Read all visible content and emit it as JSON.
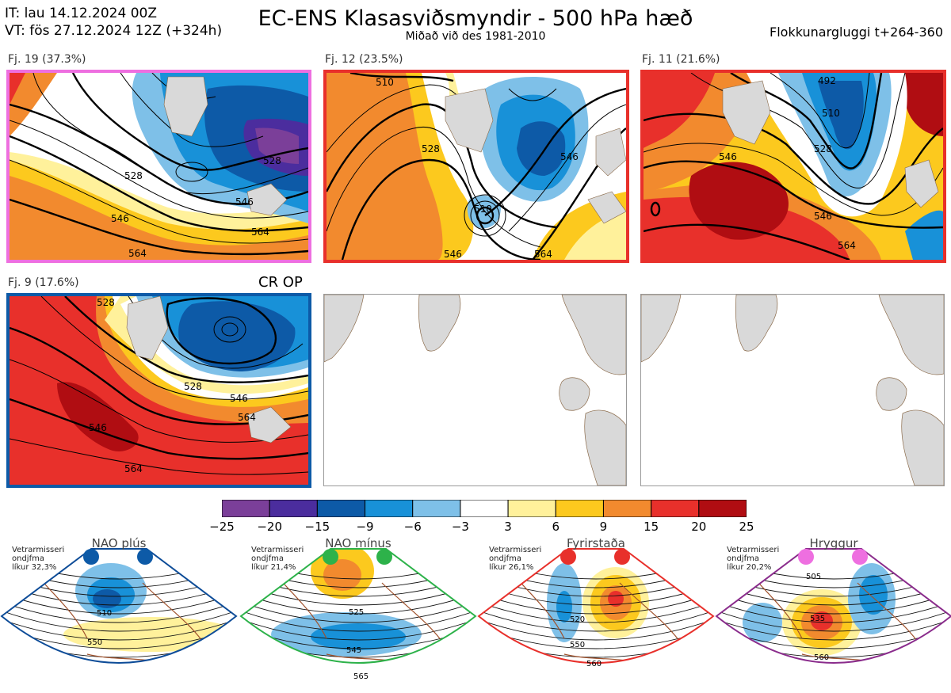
{
  "header": {
    "it_line": "IT: lau 14.12.2024 00Z",
    "vt_line": "VT: fös 27.12.2024 12Z  (+324h)",
    "title": "EC-ENS Klasasviðsmyndir - 500 hPa hæð",
    "subtitle": "Miðað við des 1981-2010",
    "window": "Flokkunargluggi t+264-360"
  },
  "op_label": "CR OP",
  "colors": {
    "scale": [
      "#7b3f99",
      "#4b2d9e",
      "#0d5aa7",
      "#1891d8",
      "#7ec0e8",
      "#ffffff",
      "#fff19b",
      "#fcc91e",
      "#f28a2e",
      "#e8302b",
      "#b00d12"
    ],
    "land": "#d9d9d9",
    "coast": "#8a6a4a"
  },
  "chart_data": [
    {
      "type": "heatmap",
      "panel": "Fj. 19 (37.3%)",
      "label": "Fj. 19 (37.3%)",
      "frame_color": "#ee6fe0",
      "contour_labels": [
        "528",
        "546",
        "564",
        "528",
        "546",
        "564"
      ]
    },
    {
      "type": "heatmap",
      "panel": "Fj. 12 (23.5%)",
      "label": "Fj. 12 (23.5%)",
      "frame_color": "#e8302b",
      "contour_labels": [
        "510",
        "528",
        "546",
        "510",
        "546",
        "564"
      ]
    },
    {
      "type": "heatmap",
      "panel": "Fj. 11 (21.6%)",
      "label": "Fj. 11 (21.6%)",
      "frame_color": "#e8302b",
      "contour_labels": [
        "492",
        "510",
        "528",
        "546",
        "546",
        "564"
      ]
    },
    {
      "type": "heatmap",
      "panel": "Fj. 9 (17.6%)",
      "label": "Fj. 9 (17.6%)",
      "frame_color": "#0d5aa7",
      "contour_labels": [
        "528",
        "546",
        "564",
        "528",
        "546",
        "564"
      ]
    },
    {
      "type": "colorbar",
      "ticks": [
        "−25",
        "−20",
        "−15",
        "−9",
        "−6",
        "−3",
        "3",
        "6",
        "9",
        "15",
        "20",
        "25"
      ]
    }
  ],
  "regimes": [
    {
      "title": "NAO plús",
      "note": [
        "Vetrarmisseri",
        "ondjfma",
        "líkur 32,3%"
      ],
      "dot_color": "#0d5aa7",
      "line_color": "#0d4c98",
      "contours": [
        "510",
        "550"
      ]
    },
    {
      "title": "NAO mínus",
      "note": [
        "Vetrarmisseri",
        "ondjfma",
        "líkur 21,4%"
      ],
      "dot_color": "#2db24a",
      "line_color": "#2db24a",
      "contours": [
        "525",
        "545",
        "565"
      ]
    },
    {
      "title": "Fyrirstaða",
      "note": [
        "Vetrarmisseri",
        "ondjfma",
        "líkur 26,1%"
      ],
      "dot_color": "#e8302b",
      "line_color": "#e8302b",
      "contours": [
        "520",
        "550",
        "560"
      ]
    },
    {
      "title": "Hryggur",
      "note": [
        "Vetrarmisseri",
        "ondjfma",
        "líkur 20,2%"
      ],
      "dot_color": "#ee6fe0",
      "line_color": "#8a2c8c",
      "contours": [
        "505",
        "535",
        "560"
      ]
    }
  ]
}
